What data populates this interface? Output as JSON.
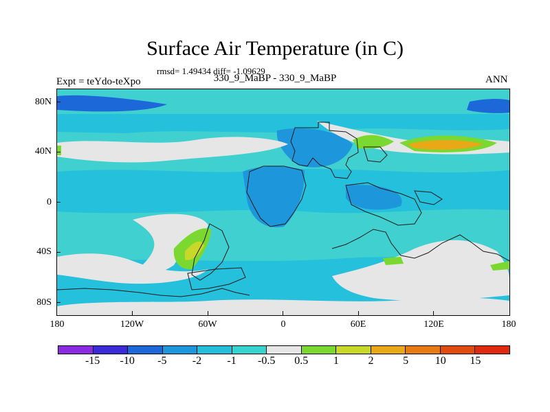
{
  "title": "Surface Air Temperature (in C)",
  "stats": "rmsd= 1.49434 diff= -1.09629",
  "subtitle": "330_9_MaBP - 330_9_MaBP",
  "expt": "Expt = teYdo-teXpo",
  "season": "ANN",
  "colors": {
    "bg_anomaly": "#42d2d2",
    "deep_blue": "#1c68d8",
    "mid_blue": "#1e96dc",
    "light_blue": "#22bedc",
    "neutral": "#e6e6e6",
    "green": "#7ad830",
    "yellow": "#c8d828",
    "orange": "#e8a818",
    "coast": "#1a1a1a"
  },
  "map": {
    "y_ticks": [
      "80N",
      "40N",
      "0",
      "40S",
      "80S"
    ],
    "x_ticks": [
      "180",
      "120W",
      "60W",
      "0",
      "60E",
      "120E",
      "180"
    ]
  },
  "colorbar": {
    "colors": [
      "#8a2be2",
      "#3a2ad8",
      "#1c68d8",
      "#1e96dc",
      "#22bedc",
      "#36d3d0",
      "#e6e6e6",
      "#7ad830",
      "#c8d828",
      "#e8a818",
      "#e87a14",
      "#e04c10",
      "#e02a10"
    ],
    "labels": [
      "-15",
      "-10",
      "-5",
      "-2",
      "-1",
      "-0.5",
      "0.5",
      "1",
      "2",
      "5",
      "10",
      "15"
    ]
  }
}
